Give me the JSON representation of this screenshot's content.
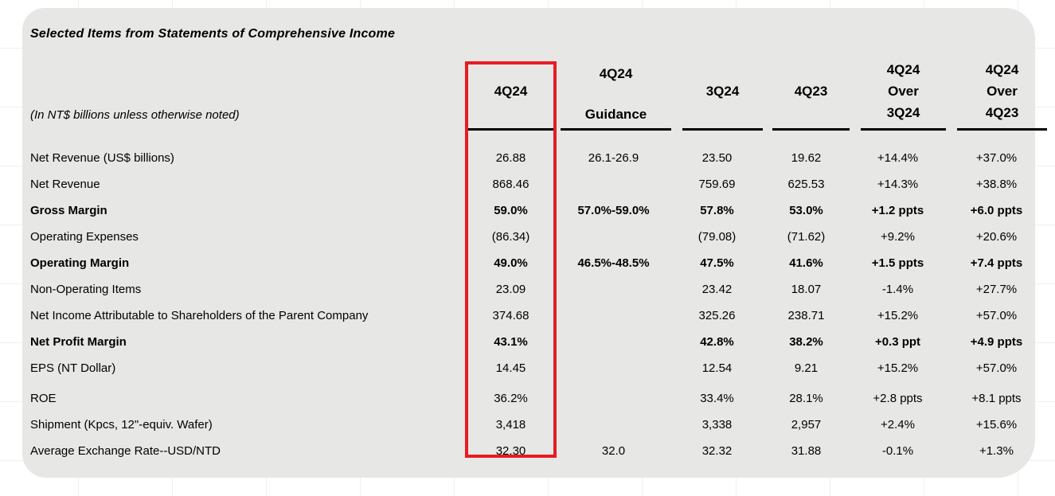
{
  "title": "Selected Items from Statements of Comprehensive Income",
  "units_note": "(In NT$ billions unless otherwise noted)",
  "columns": [
    {
      "id": "q4_24",
      "lines": [
        "4Q24"
      ]
    },
    {
      "id": "guidance",
      "lines": [
        "4Q24",
        "Guidance"
      ]
    },
    {
      "id": "q3_24",
      "lines": [
        "3Q24"
      ]
    },
    {
      "id": "q4_23",
      "lines": [
        "4Q23"
      ]
    },
    {
      "id": "qoq",
      "lines": [
        "4Q24",
        "Over",
        "3Q24"
      ]
    },
    {
      "id": "yoy",
      "lines": [
        "4Q24",
        "Over",
        "4Q23"
      ]
    }
  ],
  "highlight": {
    "column": "4Q24",
    "color": "#e81b23"
  },
  "colors": {
    "panel_bg": "#e7e7e5",
    "text": "#000000",
    "header_rule": "#000000"
  },
  "rows": [
    {
      "label": "Net Revenue (US$ billions)",
      "bold": false,
      "q4_24": "26.88",
      "guidance": "26.1-26.9",
      "q3_24": "23.50",
      "q4_23": "19.62",
      "qoq": "+14.4%",
      "yoy": "+37.0%"
    },
    {
      "label": "Net Revenue",
      "bold": false,
      "q4_24": "868.46",
      "guidance": "",
      "q3_24": "759.69",
      "q4_23": "625.53",
      "qoq": "+14.3%",
      "yoy": "+38.8%"
    },
    {
      "label": "Gross Margin",
      "bold": true,
      "q4_24": "59.0%",
      "guidance": "57.0%-59.0%",
      "q3_24": "57.8%",
      "q4_23": "53.0%",
      "qoq": "+1.2 ppts",
      "yoy": "+6.0 ppts"
    },
    {
      "label": "Operating Expenses",
      "bold": false,
      "q4_24": "(86.34)",
      "guidance": "",
      "q3_24": "(79.08)",
      "q4_23": "(71.62)",
      "qoq": "+9.2%",
      "yoy": "+20.6%"
    },
    {
      "label": "Operating Margin",
      "bold": true,
      "q4_24": "49.0%",
      "guidance": "46.5%-48.5%",
      "q3_24": "47.5%",
      "q4_23": "41.6%",
      "qoq": "+1.5 ppts",
      "yoy": "+7.4 ppts"
    },
    {
      "label": "Non-Operating Items",
      "bold": false,
      "q4_24": "23.09",
      "guidance": "",
      "q3_24": "23.42",
      "q4_23": "18.07",
      "qoq": "-1.4%",
      "yoy": "+27.7%"
    },
    {
      "label": "Net Income Attributable to Shareholders of the Parent Company",
      "bold": false,
      "q4_24": "374.68",
      "guidance": "",
      "q3_24": "325.26",
      "q4_23": "238.71",
      "qoq": "+15.2%",
      "yoy": "+57.0%"
    },
    {
      "label": "Net Profit Margin",
      "bold": true,
      "q4_24": "43.1%",
      "guidance": "",
      "q3_24": "42.8%",
      "q4_23": "38.2%",
      "qoq": "+0.3 ppt",
      "yoy": "+4.9 ppts"
    },
    {
      "label": "EPS (NT Dollar)",
      "bold": false,
      "q4_24": "14.45",
      "guidance": "",
      "q3_24": "12.54",
      "q4_23": "9.21",
      "qoq": "+15.2%",
      "yoy": "+57.0%"
    },
    {
      "label": "ROE",
      "bold": false,
      "gap_before": true,
      "q4_24": "36.2%",
      "guidance": "",
      "q3_24": "33.4%",
      "q4_23": "28.1%",
      "qoq": "+2.8 ppts",
      "yoy": "+8.1 ppts"
    },
    {
      "label": "Shipment (Kpcs, 12\"-equiv. Wafer)",
      "bold": false,
      "q4_24": "3,418",
      "guidance": "",
      "q3_24": "3,338",
      "q4_23": "2,957",
      "qoq": "+2.4%",
      "yoy": "+15.6%"
    },
    {
      "label": "Average Exchange Rate--USD/NTD",
      "bold": false,
      "q4_24": "32.30",
      "guidance": "32.0",
      "q3_24": "32.32",
      "q4_23": "31.88",
      "qoq": "-0.1%",
      "yoy": "+1.3%"
    }
  ]
}
